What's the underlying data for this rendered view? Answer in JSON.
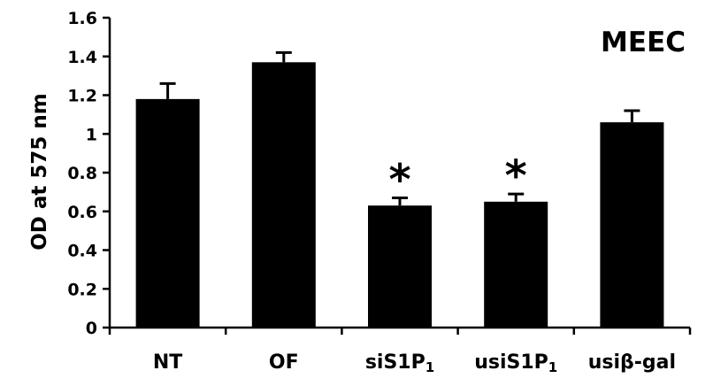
{
  "chart_data": {
    "type": "bar",
    "title": "MEEC",
    "ylabel": "OD at 575 nm",
    "xlabel": "",
    "ylim": [
      0,
      1.6
    ],
    "yticks": [
      "0",
      "0.2",
      "0.4",
      "0.6",
      "0.8",
      "1",
      "1.2",
      "1.4",
      "1.6"
    ],
    "ytick_values": [
      0,
      0.2,
      0.4,
      0.6,
      0.8,
      1.0,
      1.2,
      1.4,
      1.6
    ],
    "categories": [
      {
        "main": "NT",
        "sub": ""
      },
      {
        "main": "OF",
        "sub": ""
      },
      {
        "main": "siS1P",
        "sub": "1"
      },
      {
        "main": "usiS1P",
        "sub": "1"
      },
      {
        "main": "usiβ-gal",
        "sub": ""
      }
    ],
    "values": [
      1.18,
      1.37,
      0.63,
      0.65,
      1.06
    ],
    "errors": [
      0.08,
      0.05,
      0.04,
      0.04,
      0.06
    ],
    "significance": [
      "",
      "",
      "*",
      "*",
      ""
    ],
    "bar_color": "#000000",
    "grid": false,
    "legend": "none"
  }
}
